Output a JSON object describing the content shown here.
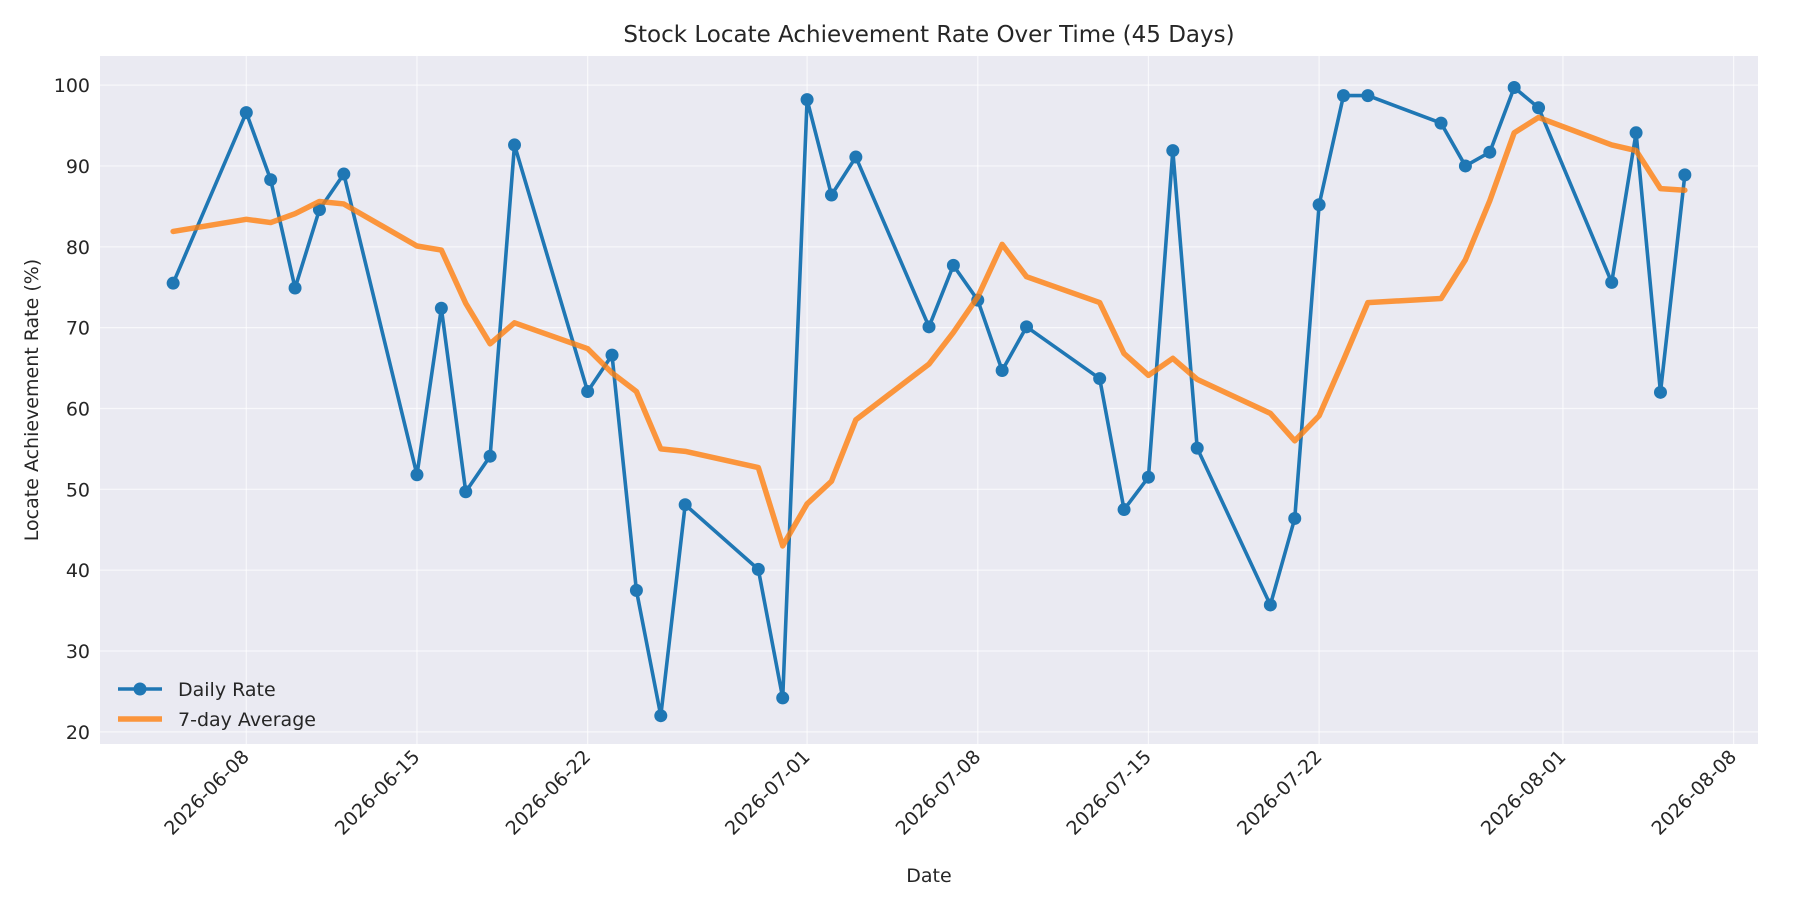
{
  "chart_data": {
    "type": "line",
    "title": "Stock Locate Achievement Rate Over Time (45 Days)",
    "xlabel": "Date",
    "ylabel": "Locate Achievement Rate (%)",
    "xlim": [
      "2026-06-02",
      "2026-08-09"
    ],
    "ylim": [
      18.5,
      103.6
    ],
    "x_ticks": [
      "2026-06-08",
      "2026-06-15",
      "2026-06-22",
      "2026-07-01",
      "2026-07-08",
      "2026-07-15",
      "2026-07-22",
      "2026-08-01",
      "2026-08-08"
    ],
    "y_ticks": [
      20,
      30,
      40,
      50,
      60,
      70,
      80,
      90,
      100
    ],
    "grid": true,
    "legend_position": "lower-left",
    "colors": {
      "Daily Rate": "#1f77b4",
      "7-day Average": "#ff7f0e"
    },
    "x": [
      "2026-06-05",
      "2026-06-08",
      "2026-06-09",
      "2026-06-10",
      "2026-06-11",
      "2026-06-12",
      "2026-06-15",
      "2026-06-16",
      "2026-06-17",
      "2026-06-18",
      "2026-06-19",
      "2026-06-22",
      "2026-06-23",
      "2026-06-24",
      "2026-06-25",
      "2026-06-26",
      "2026-06-29",
      "2026-06-30",
      "2026-07-01",
      "2026-07-02",
      "2026-07-03",
      "2026-07-06",
      "2026-07-07",
      "2026-07-08",
      "2026-07-09",
      "2026-07-10",
      "2026-07-13",
      "2026-07-14",
      "2026-07-15",
      "2026-07-16",
      "2026-07-17",
      "2026-07-20",
      "2026-07-21",
      "2026-07-22",
      "2026-07-23",
      "2026-07-24",
      "2026-07-27",
      "2026-07-28",
      "2026-07-29",
      "2026-07-30",
      "2026-07-31",
      "2026-08-03",
      "2026-08-04",
      "2026-08-05",
      "2026-08-06"
    ],
    "series": [
      {
        "name": "Daily Rate",
        "values": [
          75.5,
          96.6,
          88.3,
          74.9,
          84.6,
          89.0,
          51.8,
          72.4,
          49.7,
          54.1,
          92.6,
          62.1,
          66.6,
          37.5,
          22.0,
          48.1,
          40.1,
          24.2,
          98.2,
          86.4,
          91.1,
          70.1,
          77.7,
          73.4,
          64.7,
          70.1,
          63.7,
          47.5,
          51.5,
          91.9,
          55.1,
          35.7,
          46.4,
          85.2,
          98.7,
          98.7,
          95.3,
          90.0,
          91.7,
          99.7,
          97.2,
          75.6,
          94.1,
          62.0,
          88.9
        ]
      },
      {
        "name": "7-day Average",
        "values": [
          81.9,
          83.4,
          83.0,
          84.1,
          85.6,
          85.3,
          80.1,
          79.6,
          73.0,
          68.0,
          70.6,
          67.4,
          64.4,
          62.1,
          55.0,
          54.7,
          52.7,
          43.0,
          48.2,
          51.0,
          58.6,
          65.5,
          69.4,
          73.8,
          80.3,
          76.3,
          73.1,
          66.8,
          64.1,
          66.2,
          63.6,
          59.4,
          56.0,
          59.1,
          66.0,
          73.1,
          73.6,
          78.4,
          85.7,
          94.1,
          96.0,
          92.6,
          91.9,
          87.2,
          87.0
        ]
      }
    ]
  }
}
